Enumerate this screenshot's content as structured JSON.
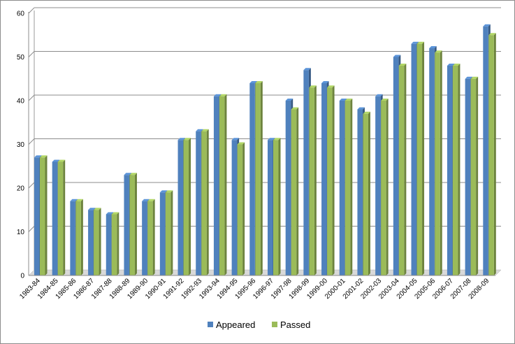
{
  "chart_data": {
    "type": "bar",
    "categories": [
      "1983-84",
      "1984-85",
      "1985-86",
      "1986-87",
      "1987-88",
      "1988-89",
      "1989-90",
      "1990-91",
      "1991-92",
      "1992-93",
      "1993-94",
      "1994-95",
      "1995-96",
      "1996-97",
      "1997-98",
      "1998-99",
      "1999-00",
      "2000-01",
      "2001-02",
      "2002-03",
      "2003-04",
      "2004-05",
      "2005-06",
      "2006-07",
      "2007-08",
      "2008-09"
    ],
    "series": [
      {
        "name": "Appeared",
        "color": "#4f81bd",
        "values": [
          27,
          26,
          17,
          15,
          14,
          23,
          17,
          19,
          31,
          33,
          41,
          31,
          44,
          31,
          40,
          47,
          44,
          40,
          38,
          41,
          50,
          53,
          52,
          48,
          45,
          57
        ]
      },
      {
        "name": "Passed",
        "color": "#9bbb59",
        "values": [
          27,
          26,
          17,
          15,
          14,
          23,
          17,
          19,
          31,
          33,
          41,
          30,
          44,
          31,
          38,
          43,
          43,
          40,
          37,
          40,
          48,
          53,
          51,
          48,
          45,
          55
        ]
      }
    ],
    "yticks": [
      "0",
      "10",
      "20",
      "30",
      "40",
      "50",
      "60"
    ],
    "ylim": [
      0,
      60
    ],
    "grid": true,
    "style": "3d-clustered-column",
    "legend_position": "bottom",
    "title": "",
    "xlabel": "",
    "ylabel": ""
  }
}
